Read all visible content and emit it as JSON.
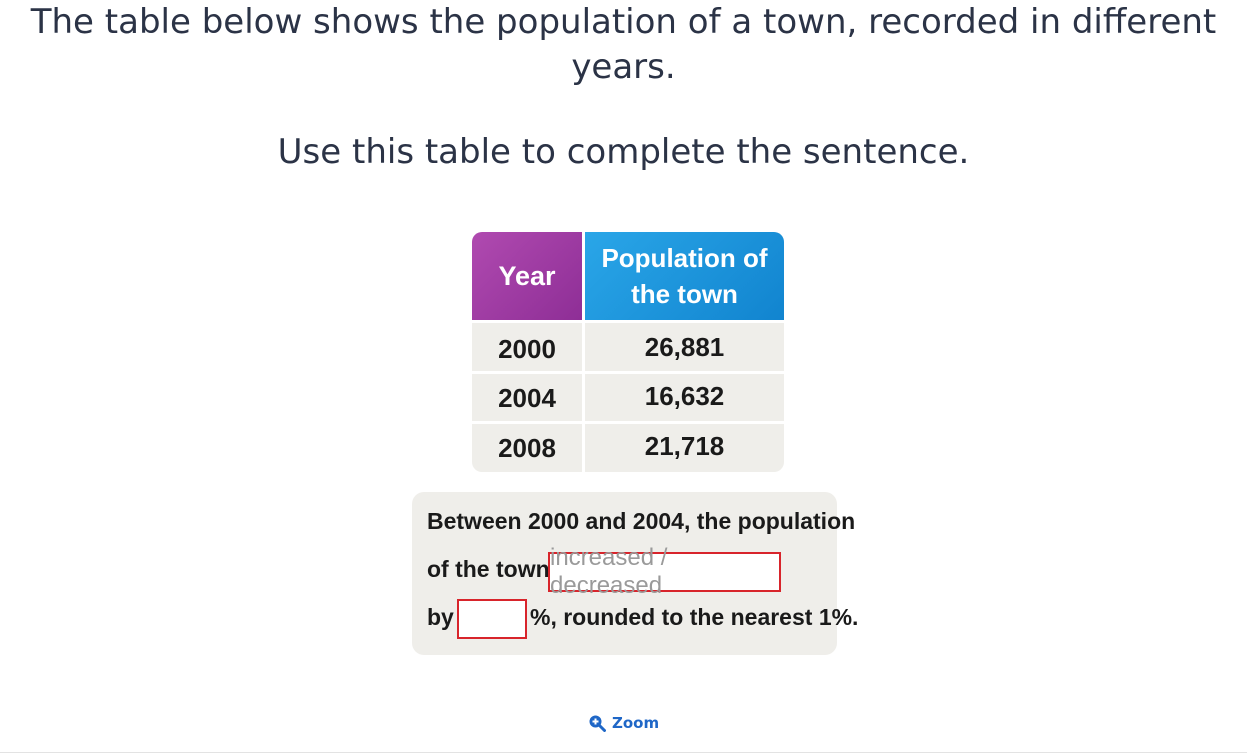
{
  "question": {
    "line1": "The table below shows the population of a town, recorded in different",
    "line2": "years.",
    "instruction": "Use this table to complete the sentence."
  },
  "table": {
    "header_year": "Year",
    "header_pop_1": "Population of",
    "header_pop_2": "the town",
    "header_year_color": "#a23ea6",
    "header_pop_color": "#1b95dc",
    "rows": [
      {
        "year": "2000",
        "population": "26,881"
      },
      {
        "year": "2004",
        "population": "16,632"
      },
      {
        "year": "2008",
        "population": "21,718"
      }
    ]
  },
  "sentence": {
    "line1": "Between 2000 and 2004, the population",
    "line2_prefix": "of the town",
    "choice_placeholder": "increased / decreased",
    "line3_prefix": "by",
    "line3_suffix": "%, rounded to the nearest 1%.",
    "field_border_color": "#d8242b"
  },
  "zoom": {
    "label": "Zoom",
    "icon": "zoom-in-icon"
  }
}
